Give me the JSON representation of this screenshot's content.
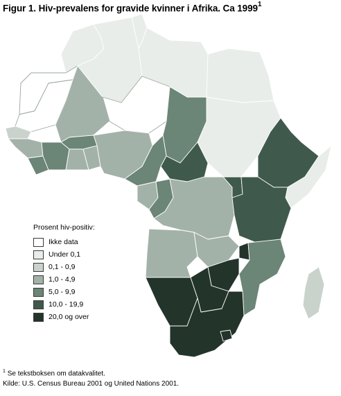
{
  "title": "Figur 1. Hiv-prevalens for gravide kvinner i Afrika. Ca 1999",
  "title_sup": "1",
  "legend": {
    "title": "Prosent hiv-positiv:",
    "items": [
      {
        "label": "Ikke data",
        "color": "#ffffff"
      },
      {
        "label": "Under 0,1",
        "color": "#e8ede9"
      },
      {
        "label": "0,1 - 0,9",
        "color": "#c9d3cc"
      },
      {
        "label": "1,0 - 4,9",
        "color": "#a3b2a8"
      },
      {
        "label": "5,0 - 9,9",
        "color": "#6b8576"
      },
      {
        "label": "10,0 - 19,9",
        "color": "#3f5a4c"
      },
      {
        "label": "20,0 og over",
        "color": "#23342b"
      }
    ]
  },
  "footnote_sup": "1",
  "footnote": "Se tekstboksen om datakvalitet.",
  "source": "Kilde: U.S. Census Bureau 2001 og United Nations 2001."
}
